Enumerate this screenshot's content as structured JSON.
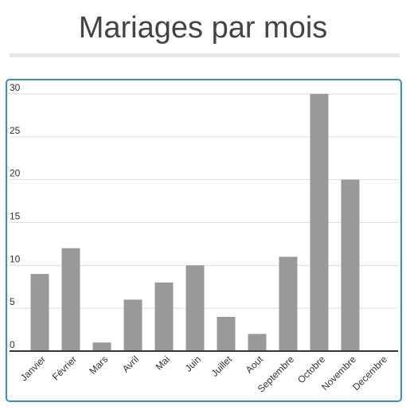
{
  "page": {
    "title": "Mariages par mois"
  },
  "colors": {
    "bar": "#999999",
    "frame_border": "#3a8fc4",
    "grid": "#dddddd",
    "axis": "#333333",
    "title_text": "#444444"
  },
  "chart_data": {
    "type": "bar",
    "title": "Mariages par mois",
    "xlabel": "",
    "ylabel": "",
    "categories": [
      "Janvier",
      "Février",
      "Mars",
      "Avril",
      "Mai",
      "Juin",
      "Juillet",
      "Aout",
      "Septembre",
      "Octobre",
      "Novembre",
      "Decembre"
    ],
    "values": [
      9,
      12,
      1,
      6,
      8,
      10,
      4,
      2,
      11,
      30,
      20,
      0
    ],
    "ylim": [
      0,
      30
    ],
    "yticks": [
      0,
      5,
      10,
      15,
      20,
      25,
      30
    ],
    "grid": true,
    "legend": "none"
  }
}
